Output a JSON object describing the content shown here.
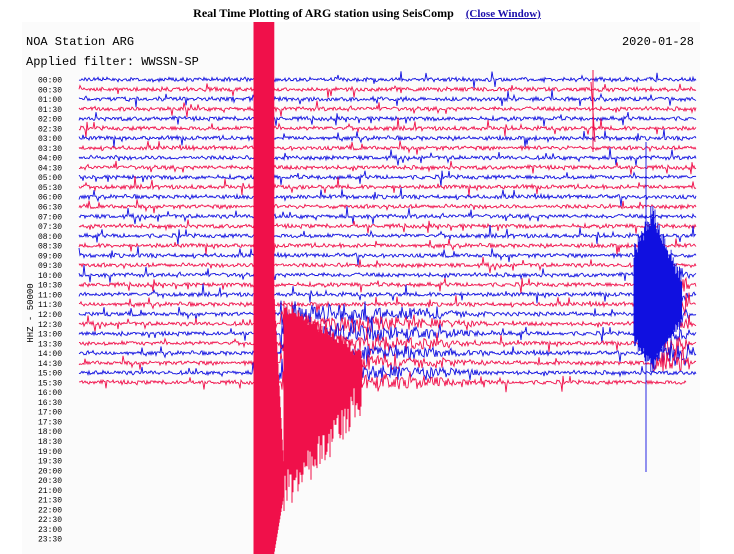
{
  "header": {
    "title": "Real Time Plotting of ARG station using SeisComp",
    "close_label": "(Close Window)"
  },
  "plot": {
    "station_label": "NOA Station ARG",
    "filter_label": "Applied filter: WWSSN-SP",
    "date": "2020-01-28",
    "channel_label": "HHZ - 50000",
    "time_labels": [
      "00:00",
      "00:30",
      "01:00",
      "01:30",
      "02:00",
      "02:30",
      "03:00",
      "03:30",
      "04:00",
      "04:30",
      "05:00",
      "05:30",
      "06:00",
      "06:30",
      "07:00",
      "07:30",
      "08:00",
      "08:30",
      "09:00",
      "09:30",
      "10:00",
      "10:30",
      "11:00",
      "11:30",
      "12:00",
      "12:30",
      "13:00",
      "13:30",
      "14:00",
      "14:30",
      "15:00",
      "15:30",
      "16:00",
      "16:30",
      "17:00",
      "17:30",
      "18:00",
      "18:30",
      "19:00",
      "19:30",
      "20:00",
      "20:30",
      "21:00",
      "21:30",
      "22:00",
      "22:30",
      "23:00",
      "23:30"
    ],
    "colors": {
      "trace_a": "#1010e0",
      "trace_b": "#f0104a",
      "text": "#000000",
      "background": "#fbfbfb"
    }
  }
}
